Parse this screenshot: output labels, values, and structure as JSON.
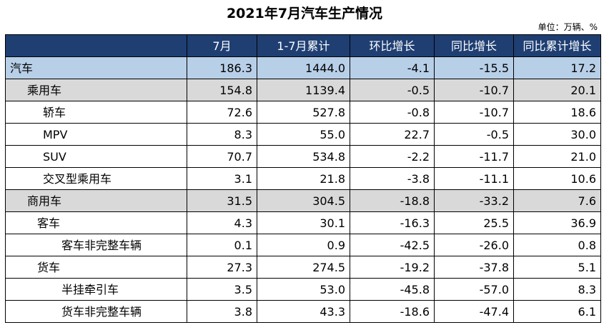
{
  "title": "2021年7月汽车生产情况",
  "unit": "单位：万辆、%",
  "headers": [
    "",
    "7月",
    "1-7月累计",
    "环比增长",
    "同比增长",
    "同比累计增长"
  ],
  "rows": [
    {
      "name": "汽车",
      "c1": "186.3",
      "c2": "1444.0",
      "c3": "-4.1",
      "c4": "-15.5",
      "c5": "17.2"
    },
    {
      "name": "乘用车",
      "c1": "154.8",
      "c2": "1139.4",
      "c3": "-0.5",
      "c4": "-10.7",
      "c5": "20.1"
    },
    {
      "name": "轿车",
      "c1": "72.6",
      "c2": "527.8",
      "c3": "-0.8",
      "c4": "-10.7",
      "c5": "18.6"
    },
    {
      "name": "MPV",
      "c1": "8.3",
      "c2": "55.0",
      "c3": "22.7",
      "c4": "-0.5",
      "c5": "30.0"
    },
    {
      "name": "SUV",
      "c1": "70.7",
      "c2": "534.8",
      "c3": "-2.2",
      "c4": "-11.7",
      "c5": "21.0"
    },
    {
      "name": "交叉型乘用车",
      "c1": "3.1",
      "c2": "21.8",
      "c3": "-3.8",
      "c4": "-11.1",
      "c5": "10.6"
    },
    {
      "name": "商用车",
      "c1": "31.5",
      "c2": "304.5",
      "c3": "-18.8",
      "c4": "-33.2",
      "c5": "7.6"
    },
    {
      "name": "客车",
      "c1": "4.3",
      "c2": "30.1",
      "c3": "-16.3",
      "c4": "25.5",
      "c5": "36.9"
    },
    {
      "name": "客车非完整车辆",
      "c1": "0.1",
      "c2": "0.9",
      "c3": "-42.5",
      "c4": "-26.0",
      "c5": "0.8"
    },
    {
      "name": "货车",
      "c1": "27.3",
      "c2": "274.5",
      "c3": "-19.2",
      "c4": "-37.8",
      "c5": "5.1"
    },
    {
      "name": "半挂牵引车",
      "c1": "3.5",
      "c2": "53.0",
      "c3": "-45.8",
      "c4": "-57.0",
      "c5": "8.3"
    },
    {
      "name": "货车非完整车辆",
      "c1": "3.8",
      "c2": "43.3",
      "c3": "-18.6",
      "c4": "-47.4",
      "c5": "6.1"
    }
  ]
}
